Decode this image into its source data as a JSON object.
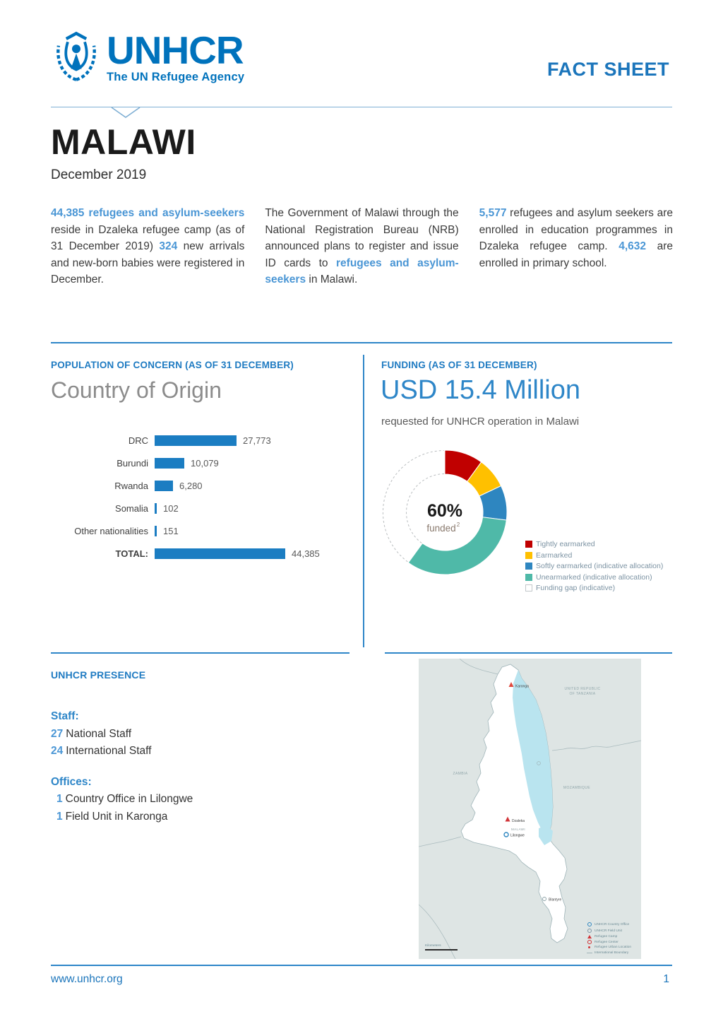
{
  "header": {
    "logo_name": "UNHCR",
    "logo_tagline": "The UN Refugee Agency",
    "fact_sheet_label": "FACT SHEET"
  },
  "title": {
    "country": "MALAWI",
    "date": "December 2019"
  },
  "intro_columns": [
    {
      "segments": [
        {
          "text": "44,385 refugees and asylum-seekers",
          "highlight": true
        },
        {
          "text": " reside in Dzaleka refugee camp (as of 31 December 2019) ",
          "highlight": false
        },
        {
          "text": "324",
          "highlight": true
        },
        {
          "text": " new arrivals and new-born babies were registered in December.",
          "highlight": false
        }
      ]
    },
    {
      "segments": [
        {
          "text": "The Government of Malawi through the National Registration Bureau (NRB) announced plans to register and issue ID cards to ",
          "highlight": false
        },
        {
          "text": "refugees and asylum-seekers",
          "highlight": true
        },
        {
          "text": " in Malawi.",
          "highlight": false
        }
      ]
    },
    {
      "segments": [
        {
          "text": "5,577",
          "highlight": true
        },
        {
          "text": " refugees and asylum seekers are enrolled in education programmes in Dzaleka refugee camp. ",
          "highlight": false
        },
        {
          "text": "4,632",
          "highlight": true
        },
        {
          "text": " are enrolled in primary school.",
          "highlight": false
        }
      ]
    }
  ],
  "population_section": {
    "heading": "POPULATION OF CONCERN (AS OF 31 DECEMBER)",
    "subheading": "Country of Origin"
  },
  "funding_section": {
    "heading": "FUNDING (AS OF 31 DECEMBER)",
    "amount": "USD 15.4 Million",
    "description": "requested for UNHCR operation in Malawi",
    "funded_percent": "60%",
    "funded_label": "funded",
    "funded_footnote": "2"
  },
  "chart_data": [
    {
      "type": "bar",
      "orientation": "horizontal",
      "title": "Country of Origin",
      "categories": [
        "DRC",
        "Burundi",
        "Rwanda",
        "Somalia",
        "Other nationalities",
        "TOTAL:"
      ],
      "values": [
        27773,
        10079,
        6280,
        102,
        151,
        44385
      ],
      "value_labels": [
        "27,773",
        "10,079",
        "6,280",
        "102",
        "151",
        "44,385"
      ],
      "bar_color": "#1B7DC2",
      "xlabel": "",
      "ylabel": "",
      "grid": false,
      "legend": false
    },
    {
      "type": "donut",
      "title": "USD 15.4 Million requested for UNHCR operation in Malawi",
      "center_label": "60% funded",
      "legend_position": "right",
      "segments": [
        {
          "label": "Tightly earmarked",
          "color": "#C00000",
          "percent": 10,
          "gap": false
        },
        {
          "label": "Earmarked",
          "color": "#FFC000",
          "percent": 8,
          "gap": false
        },
        {
          "label": "Softly earmarked (indicative allocation)",
          "color": "#2E86C0",
          "percent": 9,
          "gap": false
        },
        {
          "label": "Unearmarked (indicative allocation)",
          "color": "#4FB9A8",
          "percent": 33,
          "gap": false
        },
        {
          "label": "Funding gap (indicative)",
          "color": "#FFFFFF",
          "percent": 40,
          "gap": true
        }
      ]
    }
  ],
  "presence_section": {
    "heading": "UNHCR PRESENCE",
    "staff_label": "Staff:",
    "staff": [
      {
        "count": "27",
        "label": "National Staff"
      },
      {
        "count": "24",
        "label": "International Staff"
      }
    ],
    "offices_label": "Offices:",
    "offices": [
      {
        "count": "1",
        "label": "Country Office in Lilongwe"
      },
      {
        "count": "1",
        "label": "Field Unit in Karonga"
      }
    ]
  },
  "map": {
    "labels": {
      "tanzania_line1": "UNITED REPUBLIC",
      "tanzania_line2": "OF TANZANIA",
      "zambia": "ZAMBIA",
      "mozambique": "MOZAMBIQUE",
      "malawi": "MALAWI"
    },
    "markers": {
      "karonga": "Karonga",
      "dzaleka": "Dzaleka",
      "lilongwe": "Lilongwe",
      "blantyre": "Blantyre"
    },
    "legend": [
      "UNHCR Country Office",
      "UNHCR Field Unit",
      "Refugee Camp",
      "Refugee Center",
      "Refugee Urban Location",
      "International Boundary"
    ],
    "scale_label": "Kilometers"
  },
  "footer": {
    "website": "www.unhcr.org",
    "page_number": "1"
  },
  "colors": {
    "brand_blue": "#0072BC",
    "heading_blue": "#1F7BC2",
    "link_blue": "#4A96D5",
    "rule_blue": "#2E86C8",
    "bar_blue": "#1B7DC2",
    "red": "#C00000",
    "yellow": "#FFC000",
    "teal": "#4FB9A8"
  }
}
